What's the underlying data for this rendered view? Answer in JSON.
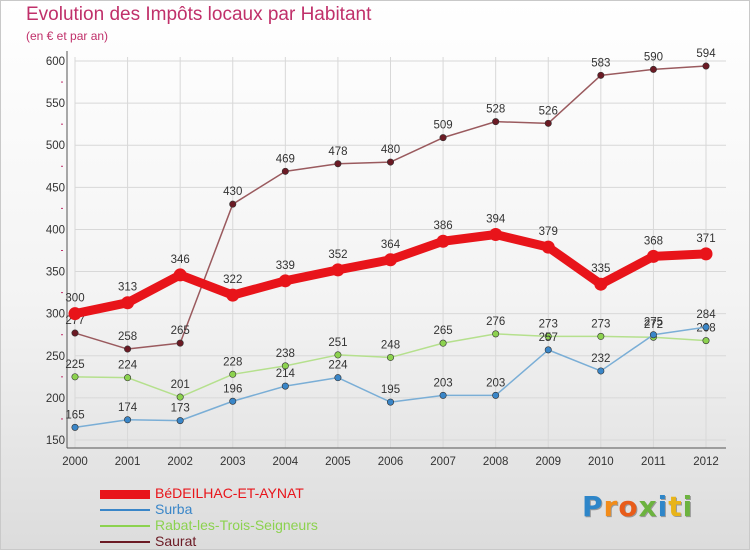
{
  "header": {
    "title": "Evolution des Impôts locaux par Habitant",
    "subtitle": "(en € et par an)"
  },
  "brand": {
    "text": "Proxiti",
    "letter_colors": [
      "#2e86c9",
      "#f28c1a",
      "#e85c1a",
      "#6cb33f",
      "#2e86c9",
      "#e8b41a",
      "#6cb33f"
    ]
  },
  "colors": {
    "axis_text": "#333333",
    "grid_line": "#d8d8d8",
    "tick_mark": "#c0306a",
    "title": "#c0306a"
  },
  "chart_data": {
    "type": "line",
    "title": "Evolution des Impôts locaux par Habitant",
    "subtitle": "(en € et par an)",
    "xlabel": "",
    "ylabel": "",
    "ylim": [
      150,
      600
    ],
    "yticks": [
      150,
      200,
      250,
      300,
      350,
      400,
      450,
      500,
      550,
      600
    ],
    "categories": [
      "2000",
      "2001",
      "2002",
      "2003",
      "2004",
      "2005",
      "2006",
      "2007",
      "2008",
      "2009",
      "2010",
      "2011",
      "2012"
    ],
    "grid": true,
    "legend_position": "bottom-left",
    "series": [
      {
        "name": "Saurat",
        "color": "#6b1a24",
        "line_color": "#9a5a5e",
        "values": [
          277,
          258,
          265,
          430,
          469,
          478,
          480,
          509,
          528,
          526,
          583,
          590,
          594
        ],
        "labels": [
          "277",
          "258",
          "265",
          "430",
          "469",
          "478",
          "480",
          "509",
          "528",
          "526",
          "583",
          "590",
          "594"
        ],
        "width": 1.5,
        "label_offset": -9
      },
      {
        "name": "Rabat-les-Trois-Seigneurs",
        "color": "#8cd24f",
        "line_color": "#b5e08d",
        "values": [
          225,
          224,
          201,
          228,
          238,
          251,
          248,
          265,
          276,
          273,
          273,
          272,
          268
        ],
        "labels": [
          "225",
          "224",
          "201",
          "228",
          "238",
          "251",
          "248",
          "265",
          "276",
          "273",
          "273",
          "272",
          "268"
        ],
        "width": 1.5,
        "label_offset": -9
      },
      {
        "name": "Surba",
        "color": "#3a86c8",
        "line_color": "#7aaed6",
        "values": [
          165,
          174,
          173,
          196,
          214,
          224,
          195,
          203,
          203,
          257,
          232,
          275,
          284
        ],
        "labels": [
          "165",
          "174",
          "173",
          "196",
          "214",
          "224",
          "195",
          "203",
          "203",
          "257",
          "232",
          "275",
          "284"
        ],
        "width": 1.5,
        "label_offset": -9
      },
      {
        "name": "BéDEILHAC-ET-AYNAT",
        "color": "#e8141a",
        "line_color": "#e8141a",
        "values": [
          300,
          313,
          346,
          322,
          339,
          352,
          364,
          386,
          394,
          379,
          335,
          368,
          371
        ],
        "labels": [
          "300",
          "313",
          "346",
          "322",
          "339",
          "352",
          "364",
          "386",
          "394",
          "379",
          "335",
          "368",
          "371"
        ],
        "width": 9,
        "label_offset": -12
      }
    ],
    "legend": [
      {
        "name": "BéDEILHAC-ET-AYNAT",
        "color": "#e8141a",
        "thickness": 9
      },
      {
        "name": "Surba",
        "color": "#3a86c8",
        "thickness": 2
      },
      {
        "name": "Rabat-les-Trois-Seigneurs",
        "color": "#8cd24f",
        "thickness": 2
      },
      {
        "name": "Saurat",
        "color": "#6b1a24",
        "thickness": 2
      }
    ]
  }
}
